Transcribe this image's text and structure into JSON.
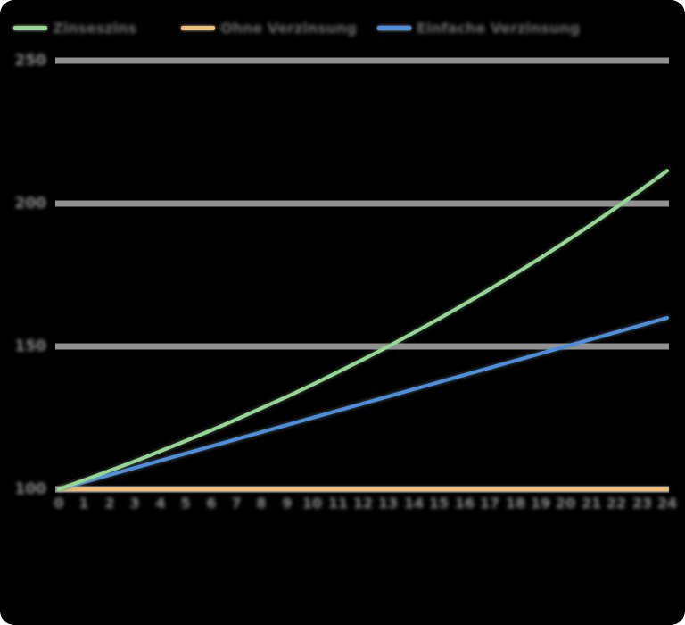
{
  "app": {
    "background": "#000000",
    "type_note": "line chart, dark background, redacted text"
  },
  "colors": {
    "gridline": "#919191",
    "axis_text": "#8c8c8c",
    "legend_text": "#686868"
  },
  "legend": {
    "position": "top",
    "items": [
      {
        "label": "Zinseszins",
        "color": "#92d892"
      },
      {
        "label": "Ohne Verzinsung",
        "color": "#f3bc74"
      },
      {
        "label": "Einfache Verzinsung",
        "color": "#4a90e2"
      }
    ]
  },
  "chart_data": {
    "type": "line",
    "title": "",
    "xlabel": "",
    "ylabel": "",
    "x": [
      0,
      1,
      2,
      3,
      4,
      5,
      6,
      7,
      8,
      9,
      10,
      11,
      12,
      13,
      14,
      15,
      16,
      17,
      18,
      19,
      20,
      21,
      22,
      23,
      24
    ],
    "y_ticks": [
      100,
      150,
      200,
      250
    ],
    "ylim": [
      100,
      250
    ],
    "grid": "horizontal",
    "legend_position": "top",
    "series": [
      {
        "name": "Zinseszins",
        "color": "#92d892",
        "values": [
          100.0,
          103.2,
          106.5,
          109.8,
          113.3,
          116.9,
          120.6,
          124.4,
          128.4,
          132.4,
          136.6,
          141.0,
          145.4,
          150.0,
          154.8,
          159.7,
          164.8,
          170.0,
          175.4,
          180.9,
          186.7,
          192.6,
          198.7,
          205.0,
          211.5
        ]
      },
      {
        "name": "Ohne Verzinsung",
        "color": "#f3bc74",
        "values": [
          100,
          100,
          100,
          100,
          100,
          100,
          100,
          100,
          100,
          100,
          100,
          100,
          100,
          100,
          100,
          100,
          100,
          100,
          100,
          100,
          100,
          100,
          100,
          100,
          100
        ]
      },
      {
        "name": "Einfache Verzinsung",
        "color": "#4a90e2",
        "values": [
          100.0,
          102.5,
          105.0,
          107.5,
          110.0,
          112.5,
          115.0,
          117.5,
          120.0,
          122.5,
          125.0,
          127.5,
          130.0,
          132.5,
          135.0,
          137.5,
          140.0,
          142.5,
          145.0,
          147.5,
          150.0,
          152.5,
          155.0,
          157.5,
          160.0
        ]
      }
    ]
  }
}
